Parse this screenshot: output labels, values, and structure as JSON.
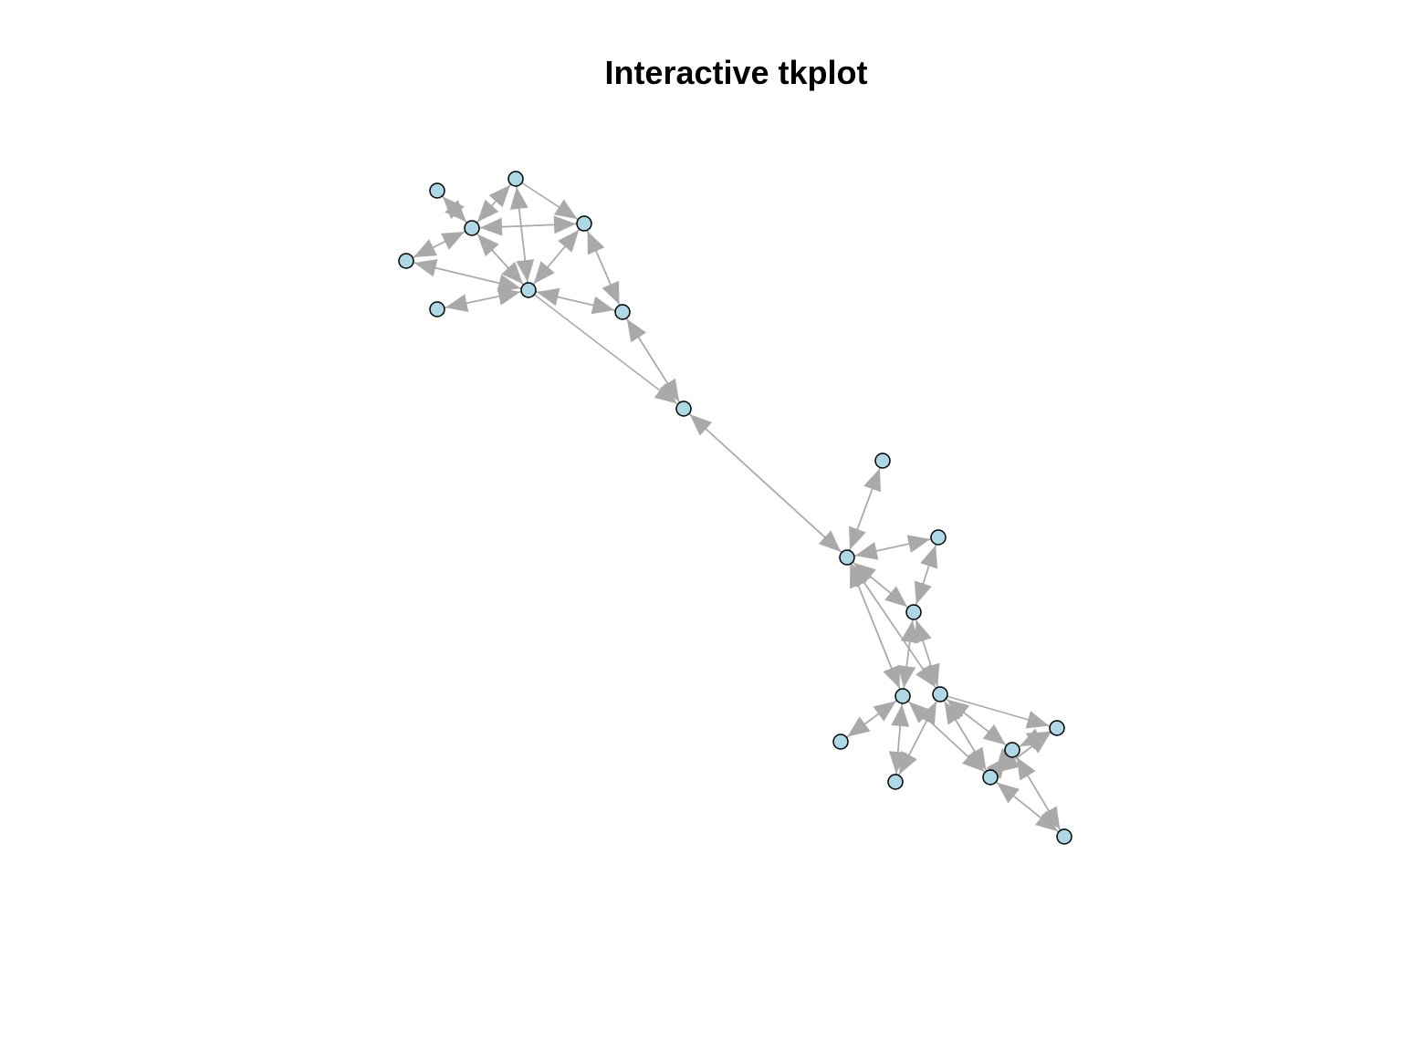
{
  "title": "Interactive tkplot",
  "colors": {
    "vertex_fill": "#ADD8E6",
    "vertex_stroke": "#000000",
    "edge": "#A9A9A9",
    "background": "#FFFFFF"
  },
  "graph": {
    "directed": true,
    "vertex_count": 22,
    "edges": [
      [
        0,
        2
      ],
      [
        2,
        0
      ],
      [
        1,
        2
      ],
      [
        2,
        1
      ],
      [
        2,
        3
      ],
      [
        3,
        2
      ],
      [
        2,
        4
      ],
      [
        4,
        2
      ],
      [
        4,
        5
      ],
      [
        5,
        4
      ],
      [
        4,
        3
      ],
      [
        3,
        4
      ],
      [
        1,
        4
      ],
      [
        4,
        1
      ],
      [
        2,
        6
      ],
      [
        6,
        2
      ],
      [
        6,
        4
      ],
      [
        4,
        6
      ],
      [
        1,
        6
      ],
      [
        6,
        7
      ],
      [
        7,
        6
      ],
      [
        7,
        4
      ],
      [
        4,
        7
      ],
      [
        7,
        8
      ],
      [
        8,
        7
      ],
      [
        4,
        8
      ],
      [
        8,
        10
      ],
      [
        10,
        8
      ],
      [
        9,
        10
      ],
      [
        10,
        9
      ],
      [
        11,
        10
      ],
      [
        10,
        11
      ],
      [
        11,
        12
      ],
      [
        12,
        11
      ],
      [
        12,
        10
      ],
      [
        10,
        12
      ],
      [
        10,
        13
      ],
      [
        13,
        10
      ],
      [
        12,
        13
      ],
      [
        13,
        12
      ],
      [
        10,
        14
      ],
      [
        14,
        10
      ],
      [
        12,
        14
      ],
      [
        14,
        12
      ],
      [
        13,
        15
      ],
      [
        15,
        13
      ],
      [
        13,
        16
      ],
      [
        16,
        13
      ],
      [
        14,
        16
      ],
      [
        16,
        14
      ],
      [
        14,
        17
      ],
      [
        17,
        14
      ],
      [
        14,
        18
      ],
      [
        18,
        14
      ],
      [
        17,
        18
      ],
      [
        18,
        17
      ],
      [
        18,
        19
      ],
      [
        19,
        18
      ],
      [
        17,
        19
      ],
      [
        19,
        17
      ],
      [
        14,
        19
      ],
      [
        13,
        17
      ],
      [
        17,
        13
      ]
    ]
  }
}
